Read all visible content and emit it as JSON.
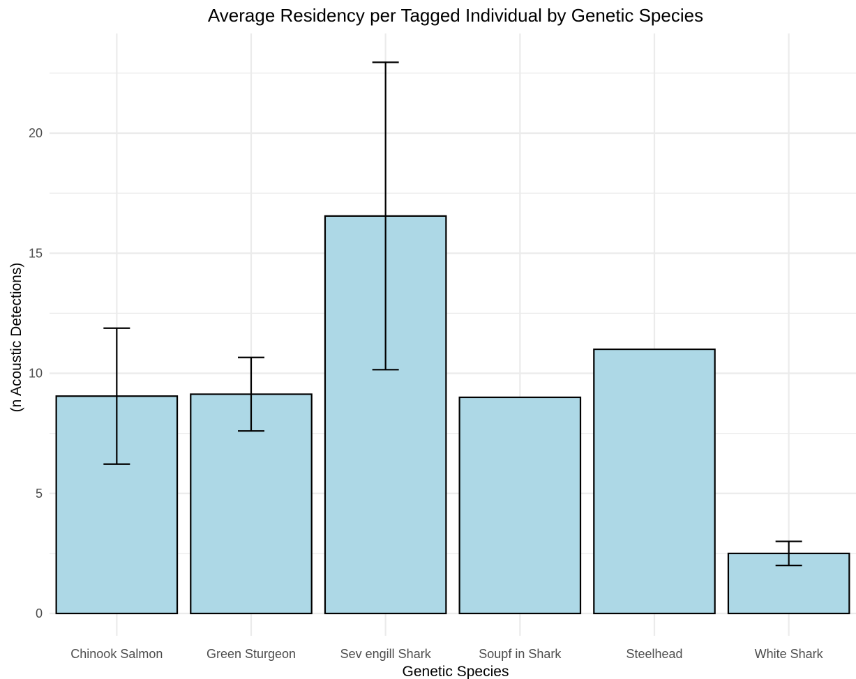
{
  "chart_data": {
    "type": "bar",
    "title": "Average Residency per Tagged Individual by Genetic Species",
    "xlabel": "Genetic Species",
    "ylabel": "(n Acoustic Detections)",
    "categories": [
      "Chinook Salmon",
      "Green Sturgeon",
      "Sev engill Shark",
      "Soupf in Shark",
      "Steelhead",
      "White Shark"
    ],
    "values": [
      9.05,
      9.13,
      16.55,
      9.0,
      11.0,
      2.5
    ],
    "error_low": [
      6.22,
      7.6,
      10.15,
      null,
      null,
      2.0
    ],
    "error_high": [
      11.88,
      10.66,
      22.95,
      null,
      null,
      3.0
    ],
    "ylim": [
      -0.9,
      24.2
    ],
    "yticks": [
      0,
      5,
      10,
      15,
      20
    ],
    "grid": true,
    "bar_fill": "#ADD8E6",
    "bar_stroke": "#000000",
    "grid_color": "#EBEBEB"
  }
}
